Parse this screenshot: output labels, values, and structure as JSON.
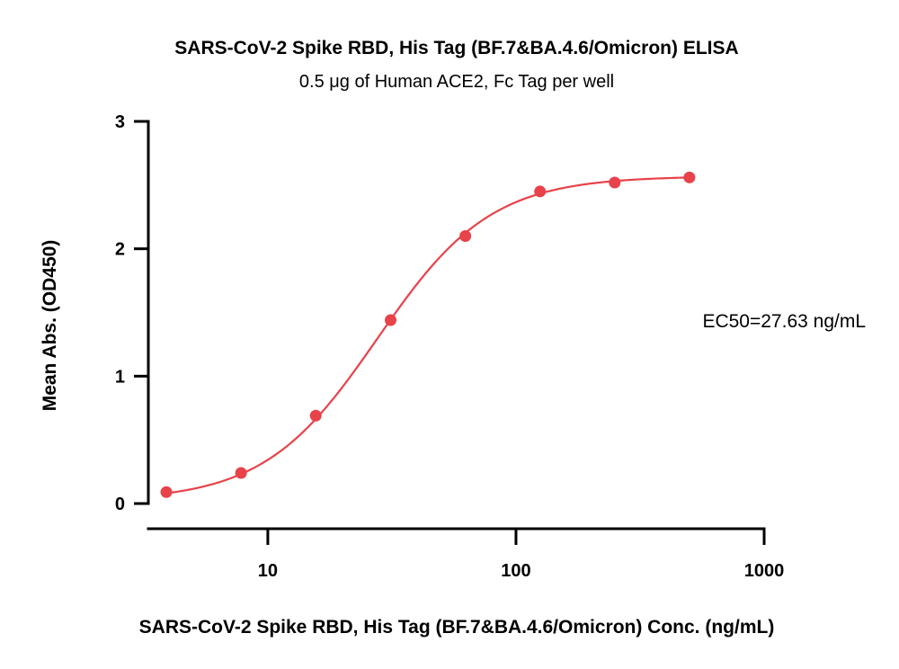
{
  "chart_data": {
    "type": "scatter",
    "title": "SARS-CoV-2 Spike RBD, His Tag (BF.7&BA.4.6/Omicron) ELISA",
    "subtitle": "0.5 μg of Human ACE2, Fc Tag per well",
    "xlabel": "SARS-CoV-2 Spike RBD, His Tag (BF.7&BA.4.6/Omicron) Conc. (ng/mL)",
    "ylabel": "Mean Abs. (OD450)",
    "xscale": "log",
    "xlim": [
      3.3,
      1000
    ],
    "ylim": [
      0,
      3
    ],
    "xticks": [
      10,
      100,
      1000
    ],
    "xtick_labels": [
      "10",
      "100",
      "1000"
    ],
    "yticks": [
      0,
      1,
      2,
      3
    ],
    "ytick_labels": [
      "0",
      "1",
      "2",
      "3"
    ],
    "grid": false,
    "annotation": "EC50=27.63 ng/mL",
    "color": "#e8424a",
    "series": [
      {
        "x": [
          3.9,
          7.8,
          15.6,
          31.25,
          62.5,
          125,
          250,
          500
        ],
        "y": [
          0.09,
          0.24,
          0.69,
          1.44,
          2.1,
          2.45,
          2.52,
          2.56
        ]
      }
    ],
    "fit": {
      "model": "4PL",
      "bottom": 0.02,
      "top": 2.57,
      "ec50": 27.63,
      "hill": 1.9
    }
  }
}
